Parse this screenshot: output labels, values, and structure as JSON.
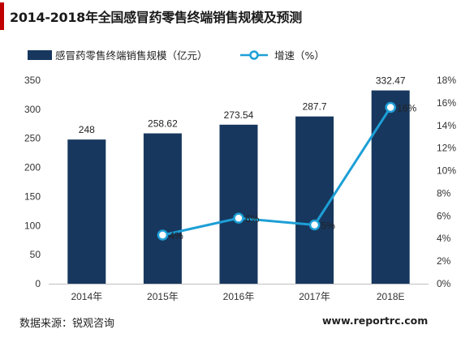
{
  "title": "2014-2018年全国感冒药零售终端销售规模及预测",
  "footer": {
    "source": "数据来源：锐观咨询",
    "website": "www.reportrc.com"
  },
  "colors": {
    "bar": "#17375e",
    "line": "#1d9fd6",
    "accent": "#c00000"
  },
  "chart_data": {
    "type": "bar",
    "categories": [
      "2014年",
      "2015年",
      "2016年",
      "2017年",
      "2018E"
    ],
    "series": [
      {
        "name": "感冒药零售终端销售规模（亿元）",
        "type": "bar",
        "axis": "left",
        "values": [
          248,
          258.62,
          273.54,
          287.7,
          332.47
        ],
        "labels": [
          "248",
          "258.62",
          "273.54",
          "287.7",
          "332.47"
        ]
      },
      {
        "name": "增速（%）",
        "type": "line",
        "axis": "right",
        "values": [
          null,
          4.3,
          5.8,
          5.2,
          15.6
        ],
        "labels": [
          null,
          "4%",
          "6%",
          "5%",
          "16%"
        ]
      }
    ],
    "y_left": {
      "range": [
        0,
        350
      ],
      "ticks": [
        "0",
        "50",
        "100",
        "150",
        "200",
        "250",
        "300",
        "350"
      ]
    },
    "y_right": {
      "range": [
        0,
        18
      ],
      "ticks": [
        "0%",
        "2%",
        "4%",
        "6%",
        "8%",
        "10%",
        "12%",
        "14%",
        "16%",
        "18%"
      ]
    },
    "grid": false,
    "legend_position": "top"
  }
}
